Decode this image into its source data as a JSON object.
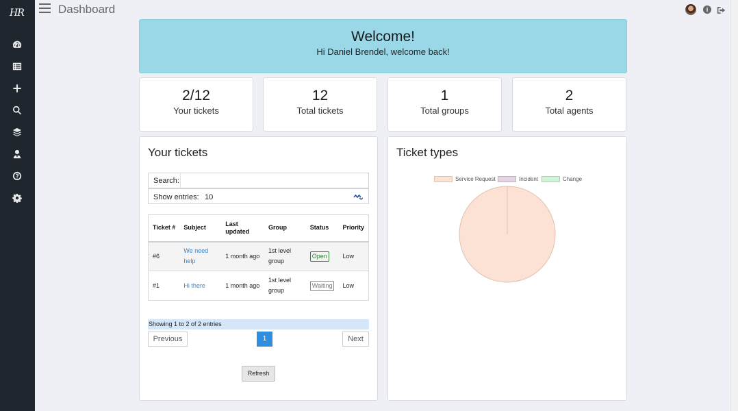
{
  "app": {
    "logo": "HR",
    "page_title": "Dashboard"
  },
  "sidebar": {
    "items": [
      {
        "icon": "dashboard-icon"
      },
      {
        "icon": "list-icon"
      },
      {
        "icon": "plus-icon"
      },
      {
        "icon": "search-icon"
      },
      {
        "icon": "layers-icon"
      },
      {
        "icon": "user-icon"
      },
      {
        "icon": "help-icon"
      },
      {
        "icon": "gear-icon"
      }
    ]
  },
  "topbar": {
    "info_glyph": "i"
  },
  "welcome": {
    "title": "Welcome!",
    "subtitle": "Hi Daniel Brendel, welcome back!"
  },
  "stats": [
    {
      "value": "2/12",
      "label": "Your tickets"
    },
    {
      "value": "12",
      "label": "Total tickets"
    },
    {
      "value": "1",
      "label": "Total groups"
    },
    {
      "value": "2",
      "label": "Total agents"
    }
  ],
  "tickets_panel": {
    "title": "Your tickets",
    "search_label": "Search:",
    "search_value": "",
    "entries_label": "Show entries:",
    "entries_value": "10",
    "columns": [
      "Ticket #",
      "Subject",
      "Last updated",
      "Group",
      "Status",
      "Priority"
    ],
    "rows": [
      {
        "id": "#6",
        "subject": "We need help",
        "updated": "1 month ago",
        "group": "1st level group",
        "status": "Open",
        "priority": "Low"
      },
      {
        "id": "#1",
        "subject": "Hi there",
        "updated": "1 month ago",
        "group": "1st level group",
        "status": "Waiting",
        "priority": "Low"
      }
    ],
    "info": "Showing 1 to 2 of 2 entries",
    "prev": "Previous",
    "page": "1",
    "next": "Next",
    "refresh": "Refresh"
  },
  "types_panel": {
    "title": "Ticket types"
  },
  "colors": {
    "service_request": "#fce2d4",
    "incident": "#e6d3e6",
    "change": "#cff5d6"
  },
  "chart_data": {
    "type": "pie",
    "title": "Ticket types",
    "categories": [
      "Service Request",
      "Incident",
      "Change"
    ],
    "values": [
      100,
      0,
      0
    ],
    "legend": "top"
  }
}
